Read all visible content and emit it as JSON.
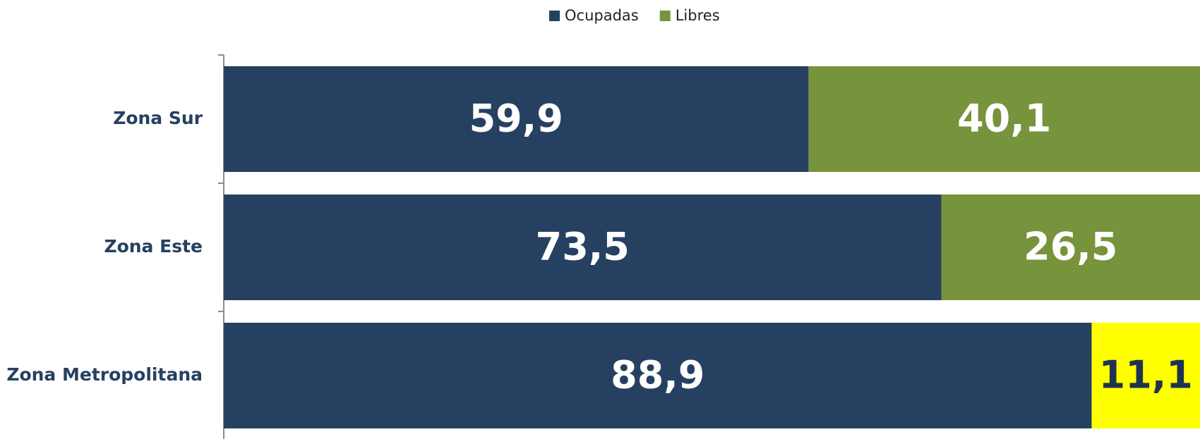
{
  "chart_data": {
    "type": "stacked_barh",
    "categories": [
      "Zona Sur",
      "Zona Este",
      "Zona Metropolitana"
    ],
    "series": [
      {
        "name": "Ocupadas",
        "color": "#264061",
        "values": [
          59.9,
          73.5,
          88.9
        ],
        "value_labels": [
          "59,9",
          "73,5",
          "88,9"
        ],
        "colors": [
          "#264061",
          "#264061",
          "#264061"
        ],
        "label_colors": [
          "#ffffff",
          "#ffffff",
          "#ffffff"
        ]
      },
      {
        "name": "Libres",
        "color": "#77933c",
        "values": [
          40.1,
          26.5,
          11.1
        ],
        "value_labels": [
          "40,1",
          "26,5",
          "11,1"
        ],
        "colors": [
          "#77933c",
          "#77933c",
          "#ffff00"
        ],
        "label_colors": [
          "#ffffff",
          "#ffffff",
          "#1f3350"
        ]
      }
    ],
    "xlim": [
      0,
      100
    ],
    "legend": "top"
  }
}
